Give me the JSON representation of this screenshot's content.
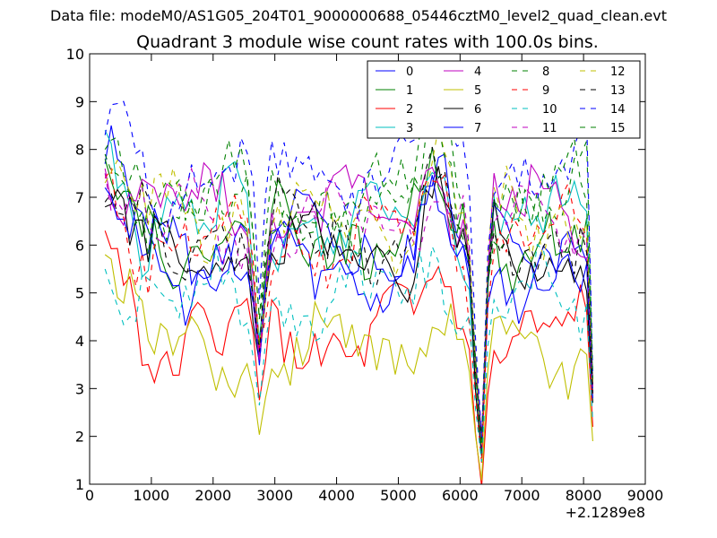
{
  "suptitle": "Data file: modeM0/AS1G05_204T01_9000000688_05446cztM0_level2_quad_clean.evt",
  "chart_data": {
    "type": "line",
    "title": "Quadrant 3 module wise count rates with 100.0s bins.",
    "xlabel": "",
    "ylabel": "",
    "x_offset_label": "+2.1289e8",
    "xlim": [
      0,
      9000
    ],
    "ylim": [
      1,
      10
    ],
    "xticks": [
      0,
      1000,
      2000,
      3000,
      4000,
      5000,
      6000,
      7000,
      8000,
      9000
    ],
    "yticks": [
      1,
      2,
      3,
      4,
      5,
      6,
      7,
      8,
      9,
      10
    ],
    "grid": false,
    "legend_position": "top-right",
    "legend_columns": 4,
    "x_start": 250,
    "x_step": 100,
    "x_end": 8150,
    "dips": [
      {
        "at": 6350,
        "width": 150,
        "depth": 0.75
      },
      {
        "at": 2750,
        "width": 110,
        "depth": 0.4
      }
    ],
    "peak": {
      "at": 6480,
      "width": 80,
      "height": 0.35
    },
    "series": [
      {
        "name": "0",
        "color": "#0000ff",
        "dash": "solid",
        "base": 6.0,
        "start": 7.7,
        "end": 2.9
      },
      {
        "name": "1",
        "color": "#008000",
        "dash": "solid",
        "base": 6.2,
        "start": 7.8,
        "end": 3.0
      },
      {
        "name": "2",
        "color": "#ff0000",
        "dash": "solid",
        "base": 4.1,
        "start": 6.3,
        "end": 2.2
      },
      {
        "name": "3",
        "color": "#00bfbf",
        "dash": "solid",
        "base": 6.5,
        "start": 8.4,
        "end": 3.0
      },
      {
        "name": "4",
        "color": "#bf00bf",
        "dash": "solid",
        "base": 6.7,
        "start": 7.6,
        "end": 3.1
      },
      {
        "name": "5",
        "color": "#bfbf00",
        "dash": "solid",
        "base": 3.8,
        "start": 5.8,
        "end": 1.9
      },
      {
        "name": "6",
        "color": "#000000",
        "dash": "solid",
        "base": 5.8,
        "start": 6.8,
        "end": 2.7
      },
      {
        "name": "7",
        "color": "#0000ff",
        "dash": "solid",
        "base": 5.6,
        "start": 7.2,
        "end": 2.8
      },
      {
        "name": "8",
        "color": "#008000",
        "dash": "dashed",
        "base": 6.9,
        "start": 8.0,
        "end": 3.1
      },
      {
        "name": "9",
        "color": "#ff0000",
        "dash": "dashed",
        "base": 6.1,
        "start": 7.4,
        "end": 2.8
      },
      {
        "name": "10",
        "color": "#00bfbf",
        "dash": "dashed",
        "base": 4.9,
        "start": 5.5,
        "end": 2.3
      },
      {
        "name": "11",
        "color": "#bf00bf",
        "dash": "dashed",
        "base": 6.4,
        "start": 7.5,
        "end": 3.0
      },
      {
        "name": "12",
        "color": "#bfbf00",
        "dash": "dashed",
        "base": 6.6,
        "start": 7.3,
        "end": 3.1
      },
      {
        "name": "13",
        "color": "#000000",
        "dash": "dashed",
        "base": 6.2,
        "start": 6.9,
        "end": 2.9
      },
      {
        "name": "14",
        "color": "#0000ff",
        "dash": "dashed",
        "base": 7.6,
        "start": 8.3,
        "end": 3.3
      },
      {
        "name": "15",
        "color": "#008000",
        "dash": "dashed",
        "base": 7.0,
        "start": 7.9,
        "end": 3.2
      }
    ]
  }
}
